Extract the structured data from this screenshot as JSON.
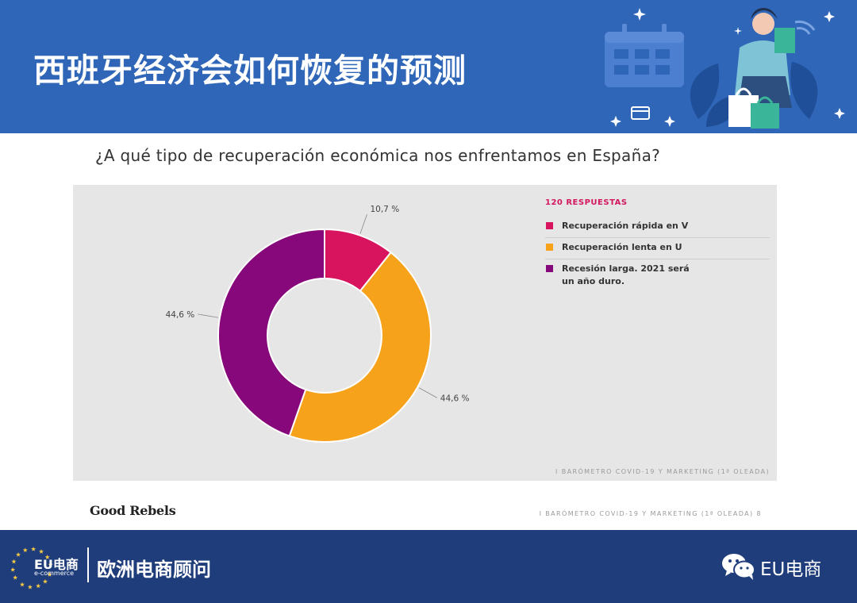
{
  "header": {
    "title": "西班牙经济会如何恢复的预测"
  },
  "question": "¿A qué tipo de recuperación económica nos enfrentamos en España?",
  "chart_data": {
    "type": "pie",
    "style": "donut",
    "title": "",
    "legend_title": "120 RESPUESTAS",
    "legend_placement": "right",
    "series": [
      {
        "name": "Recuperación rápida en V",
        "value": 10.7,
        "label": "10,7 %",
        "color": "#d8145f"
      },
      {
        "name": "Recuperación lenta en U",
        "value": 44.6,
        "label": "44,6 %",
        "color": "#f7a21b"
      },
      {
        "name": "Recesión larga. 2021 será un año duro.",
        "value": 44.6,
        "label": "44,6 %",
        "color": "#86087a"
      }
    ]
  },
  "source_inside": "I BARÓMETRO COVID-19 Y MARKETING (1ª OLEADA)",
  "brand": "Good Rebels",
  "source_outside": "I BARÓMETRO COVID-19 Y MARKETING (1ª OLEADA)  8",
  "footer": {
    "logo_main": "EU电商",
    "logo_sub": "e-commerce",
    "title": "欧洲电商顾问",
    "account": "EU电商"
  },
  "colors": {
    "header_bg": "#2f66b8",
    "footer_bg": "#1e3d7a",
    "panel_bg": "#e6e6e6",
    "accent_pink": "#d3175e"
  },
  "icons": [
    "calendar-icon",
    "credit-card-icon",
    "wifi-icon",
    "shopping-bags-icon",
    "eu-stars-icon",
    "wechat-icon"
  ]
}
